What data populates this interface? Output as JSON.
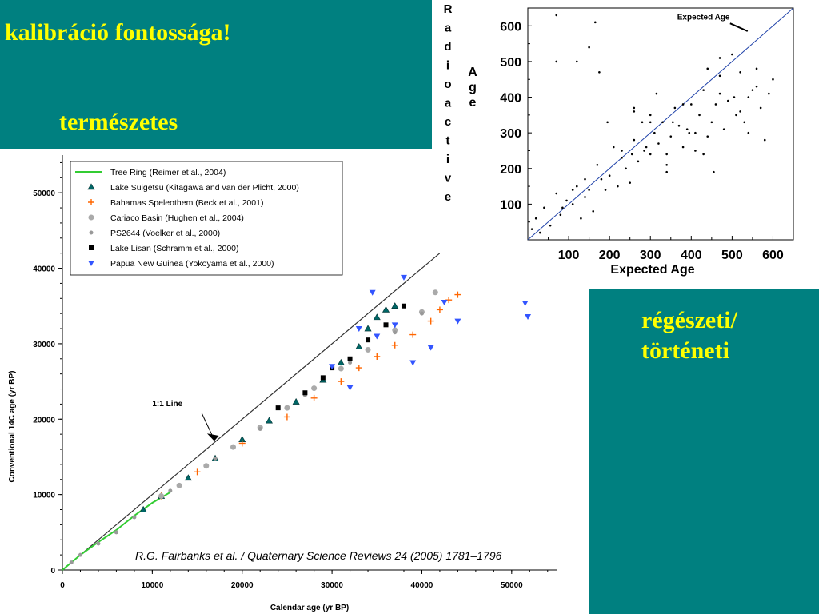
{
  "slide": {
    "title": "kalibráció fontossága!",
    "natural_label": "természetes",
    "archaeological_label": [
      "régészeti/",
      "történeti"
    ],
    "colors": {
      "teal": "#008080",
      "heading": "#ffff00"
    }
  },
  "chart_data": [
    {
      "type": "scatter",
      "xlabel": "Calendar age (yr BP)",
      "ylabel": "Conventional 14C age (yr BP)",
      "xlim": [
        0,
        55000
      ],
      "ylim": [
        0,
        55000
      ],
      "xticks": [
        0,
        10000,
        20000,
        30000,
        40000,
        50000
      ],
      "yticks": [
        0,
        10000,
        20000,
        30000,
        40000,
        50000
      ],
      "tick_labels_x": [
        "0",
        "10000",
        "20000",
        "30000",
        "40000",
        "50000"
      ],
      "tick_labels_y": [
        "0",
        "10000",
        "20000",
        "30000",
        "40000",
        "50000"
      ],
      "legend_position": "top-left",
      "annotation": "1:1 Line",
      "citation": "R.G. Fairbanks et al. / Quaternary Science Reviews 24 (2005) 1781–1796",
      "series": [
        {
          "name": "Tree Ring (Reimer et al., 2004)",
          "color": "#33cc33",
          "marker": "line",
          "x": [
            0,
            2000,
            4000,
            6000,
            8000,
            10000,
            12000
          ],
          "y": [
            0,
            2000,
            3700,
            5300,
            7200,
            8900,
            10300
          ]
        },
        {
          "name": "Lake Suigetsu (Kitagawa and van der Plicht, 2000)",
          "color": "#006666",
          "marker": "triangle",
          "x": [
            9000,
            11000,
            14000,
            17000,
            20000,
            23000,
            26000,
            29000,
            31000,
            33000,
            34000,
            35000,
            36000,
            37000
          ],
          "y": [
            8000,
            9800,
            12200,
            14800,
            17300,
            19800,
            22300,
            25200,
            27500,
            29600,
            32000,
            33500,
            34500,
            35000
          ]
        },
        {
          "name": "Bahamas Speleothem (Beck et al., 2001)",
          "color": "#ff6600",
          "marker": "plus",
          "x": [
            11000,
            15000,
            20000,
            25000,
            28000,
            31000,
            33000,
            35000,
            37000,
            39000,
            41000,
            42000,
            43000,
            44000
          ],
          "y": [
            9800,
            13000,
            16800,
            20300,
            22800,
            25000,
            26800,
            28300,
            29800,
            31200,
            33000,
            34500,
            35800,
            36500
          ]
        },
        {
          "name": "Cariaco Basin (Hughen et al., 2004)",
          "color": "#aaaaaa",
          "marker": "circle",
          "x": [
            11000,
            13000,
            16000,
            19000,
            22000,
            25000,
            28000,
            31000,
            34000,
            37000,
            40000,
            41500
          ],
          "y": [
            9800,
            11200,
            13800,
            16300,
            18900,
            21500,
            24100,
            26700,
            29200,
            31800,
            34200,
            36800
          ]
        },
        {
          "name": "PS2644 (Voelker et al., 2000)",
          "color": "#999999",
          "marker": "circle-small",
          "x": [
            1000,
            2000,
            4000,
            6000,
            8000,
            12000,
            17000,
            22000,
            27000,
            32000,
            37000,
            40000
          ],
          "y": [
            1000,
            2000,
            3500,
            5000,
            7000,
            10500,
            14800,
            18700,
            23200,
            27500,
            31500,
            34000
          ]
        },
        {
          "name": "Lake Lisan (Schramm et al., 2000)",
          "color": "#000000",
          "marker": "square",
          "x": [
            24000,
            27000,
            29000,
            30000,
            32000,
            34000,
            36000,
            38000
          ],
          "y": [
            21500,
            23500,
            25500,
            26800,
            28000,
            30500,
            32500,
            35000
          ]
        },
        {
          "name": "Papua New Guinea (Yokoyama et al., 2000)",
          "color": "#3355ff",
          "marker": "triangle-down",
          "x": [
            30000,
            32000,
            33000,
            34500,
            35000,
            37000,
            38000,
            39000,
            41000,
            42500,
            44000,
            51500,
            51800
          ],
          "y": [
            27000,
            24200,
            32000,
            36800,
            31000,
            32500,
            38800,
            27500,
            29500,
            35500,
            33000,
            35400,
            33600
          ]
        }
      ]
    },
    {
      "type": "scatter",
      "xlabel": "Expected Age",
      "ylabel": "Age",
      "ylabel_side": "Radioactive",
      "xlim": [
        0,
        650
      ],
      "ylim": [
        0,
        650
      ],
      "xticks": [
        100,
        200,
        300,
        400,
        500,
        600
      ],
      "yticks": [
        100,
        200,
        300,
        400,
        500,
        600
      ],
      "tick_labels_x": [
        "100",
        "200",
        "300",
        "400",
        "500",
        "600"
      ],
      "tick_labels_y": [
        "100",
        "200",
        "300",
        "400",
        "500",
        "600"
      ],
      "annotation": "Expected Age",
      "series": [
        {
          "name": "",
          "color": "#000000",
          "marker": "dot",
          "x": [
            10,
            20,
            30,
            40,
            55,
            70,
            80,
            95,
            110,
            120,
            130,
            140,
            150,
            160,
            170,
            180,
            190,
            200,
            210,
            220,
            230,
            240,
            250,
            260,
            270,
            280,
            290,
            300,
            310,
            320,
            330,
            340,
            350,
            360,
            370,
            380,
            390,
            400,
            410,
            420,
            430,
            440,
            450,
            460,
            470,
            480,
            490,
            500,
            510,
            520,
            530,
            540,
            550,
            560,
            570,
            580,
            590,
            600,
            70,
            120,
            165,
            70,
            195,
            255,
            285,
            300,
            340,
            395,
            430,
            470,
            150,
            175,
            230,
            260,
            315,
            340,
            355,
            410,
            455,
            520,
            560,
            85,
            110,
            140,
            260,
            300,
            380,
            440,
            470,
            505,
            540
          ],
          "y": [
            30,
            60,
            20,
            90,
            40,
            130,
            70,
            110,
            100,
            150,
            60,
            120,
            140,
            80,
            210,
            170,
            140,
            180,
            260,
            150,
            230,
            200,
            160,
            280,
            220,
            330,
            260,
            240,
            300,
            270,
            330,
            210,
            290,
            370,
            320,
            260,
            310,
            380,
            300,
            350,
            420,
            290,
            330,
            380,
            460,
            310,
            390,
            520,
            350,
            470,
            330,
            400,
            420,
            480,
            370,
            280,
            410,
            450,
            630,
            500,
            610,
            500,
            330,
            240,
            250,
            330,
            240,
            300,
            240,
            510,
            540,
            470,
            250,
            360,
            410,
            190,
            330,
            250,
            190,
            360,
            430,
            90,
            140,
            170,
            370,
            350,
            380,
            480,
            410,
            400,
            300
          ]
        },
        {
          "name": "Expected Age",
          "color": "#2244aa",
          "marker": "line",
          "x": [
            0,
            650
          ],
          "y": [
            0,
            650
          ]
        }
      ]
    }
  ]
}
